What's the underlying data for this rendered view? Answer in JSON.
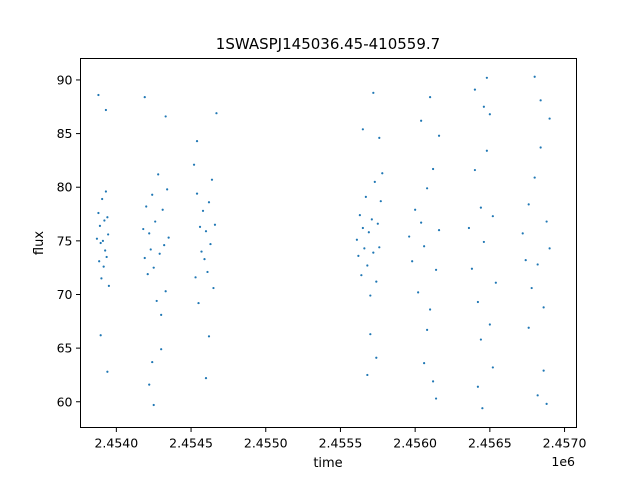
{
  "chart_data": {
    "type": "scatter",
    "title": "1SWASPJ145036.45-410559.7",
    "xlabel": "time",
    "ylabel": "flux",
    "x_offset_label": "1e6",
    "xlim": [
      2453760,
      2457080
    ],
    "ylim": [
      57.6,
      92.0
    ],
    "xticks": [
      2454000,
      2454500,
      2455000,
      2455500,
      2456000,
      2456500,
      2457000
    ],
    "xtick_labels": [
      "2.4540",
      "2.4545",
      "2.4550",
      "2.4555",
      "2.4560",
      "2.4565",
      "2.4570"
    ],
    "yticks": [
      60,
      65,
      70,
      75,
      80,
      85,
      90
    ],
    "ytick_labels": [
      "60",
      "65",
      "70",
      "75",
      "80",
      "85",
      "90"
    ],
    "grid": false,
    "marker_color": "#1f77b4",
    "series": [
      {
        "values": [
          {
            "x": 2453870,
            "y": 75.2
          },
          {
            "x": 2453880,
            "y": 77.6
          },
          {
            "x": 2453885,
            "y": 73.1
          },
          {
            "x": 2453890,
            "y": 76.4
          },
          {
            "x": 2453895,
            "y": 74.8
          },
          {
            "x": 2453900,
            "y": 71.5
          },
          {
            "x": 2453905,
            "y": 78.9
          },
          {
            "x": 2453910,
            "y": 75.0
          },
          {
            "x": 2453915,
            "y": 72.6
          },
          {
            "x": 2453920,
            "y": 76.9
          },
          {
            "x": 2453925,
            "y": 74.1
          },
          {
            "x": 2453930,
            "y": 79.6
          },
          {
            "x": 2453935,
            "y": 73.5
          },
          {
            "x": 2453940,
            "y": 77.2
          },
          {
            "x": 2453945,
            "y": 75.6
          },
          {
            "x": 2453950,
            "y": 70.8
          },
          {
            "x": 2453880,
            "y": 88.6
          },
          {
            "x": 2453895,
            "y": 66.2
          },
          {
            "x": 2453930,
            "y": 87.2
          },
          {
            "x": 2453940,
            "y": 62.8
          },
          {
            "x": 2454180,
            "y": 76.1
          },
          {
            "x": 2454190,
            "y": 73.4
          },
          {
            "x": 2454200,
            "y": 78.2
          },
          {
            "x": 2454210,
            "y": 71.9
          },
          {
            "x": 2454220,
            "y": 75.7
          },
          {
            "x": 2454230,
            "y": 74.2
          },
          {
            "x": 2454240,
            "y": 79.3
          },
          {
            "x": 2454250,
            "y": 72.5
          },
          {
            "x": 2454260,
            "y": 76.8
          },
          {
            "x": 2454270,
            "y": 69.4
          },
          {
            "x": 2454280,
            "y": 81.2
          },
          {
            "x": 2454290,
            "y": 73.8
          },
          {
            "x": 2454300,
            "y": 68.1
          },
          {
            "x": 2454310,
            "y": 77.9
          },
          {
            "x": 2454320,
            "y": 74.6
          },
          {
            "x": 2454330,
            "y": 70.3
          },
          {
            "x": 2454340,
            "y": 79.8
          },
          {
            "x": 2454350,
            "y": 75.3
          },
          {
            "x": 2454190,
            "y": 88.4
          },
          {
            "x": 2454240,
            "y": 63.7
          },
          {
            "x": 2454300,
            "y": 64.9
          },
          {
            "x": 2454330,
            "y": 86.6
          },
          {
            "x": 2454250,
            "y": 59.7
          },
          {
            "x": 2454220,
            "y": 61.6
          },
          {
            "x": 2454520,
            "y": 82.1
          },
          {
            "x": 2454530,
            "y": 71.6
          },
          {
            "x": 2454540,
            "y": 79.4
          },
          {
            "x": 2454550,
            "y": 69.2
          },
          {
            "x": 2454560,
            "y": 76.3
          },
          {
            "x": 2454570,
            "y": 74.0
          },
          {
            "x": 2454580,
            "y": 77.8
          },
          {
            "x": 2454590,
            "y": 73.3
          },
          {
            "x": 2454600,
            "y": 75.9
          },
          {
            "x": 2454610,
            "y": 72.1
          },
          {
            "x": 2454620,
            "y": 78.6
          },
          {
            "x": 2454630,
            "y": 74.7
          },
          {
            "x": 2454640,
            "y": 80.7
          },
          {
            "x": 2454650,
            "y": 70.6
          },
          {
            "x": 2454660,
            "y": 76.5
          },
          {
            "x": 2454670,
            "y": 86.9
          },
          {
            "x": 2454540,
            "y": 84.3
          },
          {
            "x": 2454620,
            "y": 66.1
          },
          {
            "x": 2454600,
            "y": 62.2
          },
          {
            "x": 2455610,
            "y": 75.1
          },
          {
            "x": 2455620,
            "y": 73.6
          },
          {
            "x": 2455630,
            "y": 77.4
          },
          {
            "x": 2455640,
            "y": 71.8
          },
          {
            "x": 2455650,
            "y": 76.2
          },
          {
            "x": 2455660,
            "y": 74.3
          },
          {
            "x": 2455670,
            "y": 79.1
          },
          {
            "x": 2455680,
            "y": 72.7
          },
          {
            "x": 2455690,
            "y": 75.8
          },
          {
            "x": 2455700,
            "y": 69.9
          },
          {
            "x": 2455710,
            "y": 77.0
          },
          {
            "x": 2455720,
            "y": 73.9
          },
          {
            "x": 2455730,
            "y": 80.5
          },
          {
            "x": 2455740,
            "y": 71.2
          },
          {
            "x": 2455750,
            "y": 76.6
          },
          {
            "x": 2455760,
            "y": 74.4
          },
          {
            "x": 2455770,
            "y": 78.7
          },
          {
            "x": 2455780,
            "y": 81.3
          },
          {
            "x": 2455650,
            "y": 85.4
          },
          {
            "x": 2455700,
            "y": 66.3
          },
          {
            "x": 2455720,
            "y": 88.8
          },
          {
            "x": 2455740,
            "y": 64.1
          },
          {
            "x": 2455680,
            "y": 62.5
          },
          {
            "x": 2455760,
            "y": 84.6
          },
          {
            "x": 2455960,
            "y": 75.4
          },
          {
            "x": 2455980,
            "y": 73.1
          },
          {
            "x": 2456000,
            "y": 77.9
          },
          {
            "x": 2456020,
            "y": 70.2
          },
          {
            "x": 2456040,
            "y": 76.7
          },
          {
            "x": 2456060,
            "y": 74.5
          },
          {
            "x": 2456080,
            "y": 79.9
          },
          {
            "x": 2456100,
            "y": 68.6
          },
          {
            "x": 2456120,
            "y": 81.7
          },
          {
            "x": 2456140,
            "y": 72.3
          },
          {
            "x": 2456160,
            "y": 76.0
          },
          {
            "x": 2456040,
            "y": 86.2
          },
          {
            "x": 2456060,
            "y": 63.6
          },
          {
            "x": 2456100,
            "y": 88.4
          },
          {
            "x": 2456120,
            "y": 61.9
          },
          {
            "x": 2456140,
            "y": 60.3
          },
          {
            "x": 2456160,
            "y": 84.8
          },
          {
            "x": 2456080,
            "y": 66.7
          },
          {
            "x": 2456360,
            "y": 76.2
          },
          {
            "x": 2456380,
            "y": 72.4
          },
          {
            "x": 2456400,
            "y": 81.6
          },
          {
            "x": 2456420,
            "y": 69.3
          },
          {
            "x": 2456440,
            "y": 78.1
          },
          {
            "x": 2456460,
            "y": 74.9
          },
          {
            "x": 2456480,
            "y": 83.4
          },
          {
            "x": 2456500,
            "y": 67.2
          },
          {
            "x": 2456520,
            "y": 77.3
          },
          {
            "x": 2456540,
            "y": 71.1
          },
          {
            "x": 2456400,
            "y": 89.1
          },
          {
            "x": 2456420,
            "y": 61.4
          },
          {
            "x": 2456450,
            "y": 59.4
          },
          {
            "x": 2456480,
            "y": 90.2
          },
          {
            "x": 2456500,
            "y": 86.8
          },
          {
            "x": 2456520,
            "y": 63.2
          },
          {
            "x": 2456440,
            "y": 65.8
          },
          {
            "x": 2456460,
            "y": 87.5
          },
          {
            "x": 2456720,
            "y": 75.7
          },
          {
            "x": 2456740,
            "y": 73.2
          },
          {
            "x": 2456760,
            "y": 78.4
          },
          {
            "x": 2456780,
            "y": 70.6
          },
          {
            "x": 2456800,
            "y": 80.9
          },
          {
            "x": 2456820,
            "y": 72.8
          },
          {
            "x": 2456840,
            "y": 83.7
          },
          {
            "x": 2456860,
            "y": 68.8
          },
          {
            "x": 2456880,
            "y": 76.8
          },
          {
            "x": 2456900,
            "y": 74.3
          },
          {
            "x": 2456800,
            "y": 90.3
          },
          {
            "x": 2456820,
            "y": 60.6
          },
          {
            "x": 2456840,
            "y": 88.1
          },
          {
            "x": 2456860,
            "y": 62.9
          },
          {
            "x": 2456880,
            "y": 59.8
          },
          {
            "x": 2456900,
            "y": 86.4
          },
          {
            "x": 2456760,
            "y": 66.9
          }
        ]
      }
    ]
  }
}
